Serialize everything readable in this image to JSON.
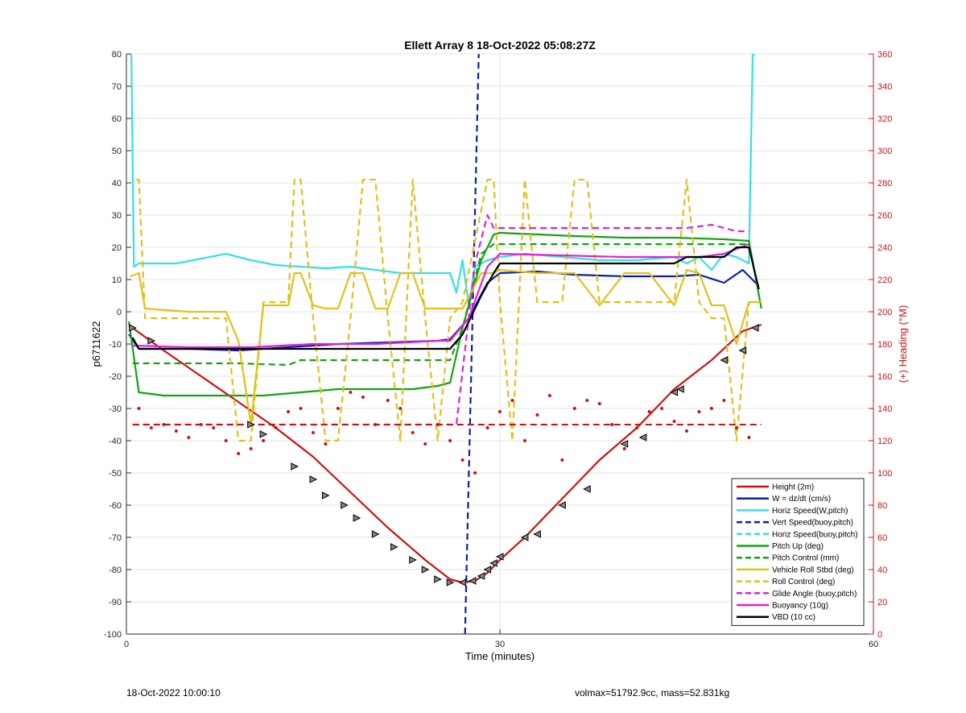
{
  "chart_data": {
    "type": "line",
    "title": "Ellett Array 8 18-Oct-2022 05:08:27Z",
    "xlabel": "Time (minutes)",
    "ylabel": "p6711622",
    "y2label": "(+) Heading (°M)",
    "xlim": [
      0,
      60
    ],
    "ylim": [
      -100,
      80
    ],
    "y2lim": [
      0,
      360
    ],
    "xticks": [
      0,
      30,
      60
    ],
    "yticks": [
      -100,
      -90,
      -80,
      -70,
      -60,
      -50,
      -40,
      -30,
      -20,
      -10,
      0,
      10,
      20,
      30,
      40,
      50,
      60,
      70,
      80
    ],
    "y2ticks": [
      0,
      20,
      40,
      60,
      80,
      100,
      120,
      140,
      160,
      180,
      200,
      220,
      240,
      260,
      280,
      300,
      320,
      340,
      360
    ],
    "grid": true,
    "legend_position": "bottom-right",
    "series": [
      {
        "name": "Height (2m)",
        "color": "#cc1111",
        "style": "solid",
        "x": [
          0.5,
          3,
          6,
          9,
          12,
          15,
          18,
          21,
          24,
          26,
          27,
          28,
          29,
          30,
          32,
          35,
          38,
          41,
          44,
          47,
          49.5,
          51
        ],
        "y": [
          -5,
          -12,
          -20,
          -28,
          -36,
          -45,
          -56,
          -67,
          -77,
          -83,
          -84,
          -83.5,
          -81,
          -77,
          -70,
          -58,
          -46,
          -36,
          -24,
          -15,
          -6,
          -4
        ]
      },
      {
        "name": "W = dz/dt (cm/s)",
        "color": "#0a1fa8",
        "style": "solid",
        "x": [
          0.2,
          1,
          5,
          9,
          13,
          17,
          21,
          25,
          26,
          27.5,
          29,
          30,
          33,
          36,
          40,
          44,
          46,
          48,
          49.5,
          50.8
        ],
        "y": [
          -7,
          -11.5,
          -11.5,
          -12,
          -11,
          -10,
          -9.5,
          -9,
          -8.5,
          -2,
          9,
          12,
          12.5,
          11.5,
          11,
          11,
          11.5,
          9,
          13,
          8
        ]
      },
      {
        "name": "Horiz Speed(W,pitch)",
        "color": "#33e0e8",
        "style": "solid",
        "x": [
          0.4,
          0.6,
          1,
          2,
          4,
          6,
          8,
          10,
          12,
          14,
          16,
          18,
          20,
          22,
          24,
          26,
          26.5,
          27,
          27.5,
          28,
          29,
          30,
          32,
          35,
          38,
          41,
          44,
          45,
          46,
          47,
          48,
          49,
          50,
          50.3,
          50.5
        ],
        "y": [
          80,
          14,
          15,
          15,
          15,
          16.5,
          18,
          16,
          14.5,
          14,
          13.5,
          14,
          13,
          12,
          12,
          12,
          6,
          16,
          2,
          14,
          16,
          17,
          18,
          17,
          16,
          16,
          17,
          15,
          17,
          13,
          18,
          17,
          15,
          80,
          80
        ]
      },
      {
        "name": "Vert Speed(buoy,pitch)",
        "color": "#0a1fa8",
        "style": "dashed",
        "x": [
          27.2,
          28.3
        ],
        "y": [
          -100,
          80
        ]
      },
      {
        "name": "Horiz Speed(buoy,pitch)",
        "color": "#33e0e8",
        "style": "dashed",
        "x": [],
        "y": []
      },
      {
        "name": "Pitch Up (deg)",
        "color": "#13a313",
        "style": "solid",
        "x": [
          0.2,
          1,
          3,
          6,
          9,
          11,
          14,
          17,
          20,
          23,
          25,
          26,
          27,
          28.5,
          29.5,
          30,
          33,
          36,
          40,
          44,
          48,
          50,
          51
        ],
        "y": [
          -3,
          -25,
          -26,
          -26,
          -26,
          -26,
          -25,
          -24,
          -24,
          -24,
          -23,
          -22,
          -5,
          16,
          24,
          24.5,
          24,
          23.5,
          23,
          23,
          22.5,
          22,
          1
        ]
      },
      {
        "name": "Pitch Control (mm)",
        "color": "#13a313",
        "style": "dashed",
        "x": [
          0.5,
          5,
          9,
          13,
          14,
          16,
          20,
          24,
          26,
          27,
          28.5,
          29.5,
          30,
          35,
          40,
          45,
          50
        ],
        "y": [
          -16,
          -16,
          -16,
          -16.5,
          -15,
          -15,
          -15,
          -15,
          -15,
          -5,
          18,
          21,
          21,
          21,
          21,
          21,
          21
        ]
      },
      {
        "name": "Vehicle Roll Stbd (deg)",
        "color": "#e0c11a",
        "style": "solid",
        "x": [
          0.3,
          1,
          1.5,
          5,
          8,
          9,
          10,
          11,
          12,
          13,
          13.5,
          14,
          15,
          16,
          17,
          18,
          19,
          20,
          21,
          22,
          23,
          24,
          25,
          26,
          27,
          28.5,
          29.5,
          30,
          33,
          36,
          38,
          40,
          42,
          44,
          45,
          46,
          47,
          48,
          49,
          50,
          51
        ],
        "y": [
          11,
          12,
          1,
          0,
          0,
          -9,
          -35,
          2,
          2,
          2,
          12,
          12,
          2,
          1,
          1,
          12,
          12,
          1,
          1,
          12,
          12,
          1,
          1,
          1,
          1,
          12,
          12,
          13,
          12,
          12,
          2,
          12,
          12,
          2,
          13,
          12,
          2,
          2,
          -10,
          3,
          3
        ]
      },
      {
        "name": "Roll Control (deg)",
        "color": "#e0c11a",
        "style": "dashed",
        "x": [
          0.8,
          1,
          1.5,
          2,
          5,
          8,
          9,
          10,
          11,
          13,
          13.5,
          14,
          15,
          16,
          17,
          18,
          19,
          20,
          21,
          22,
          23,
          24,
          25,
          26,
          27,
          29,
          29.5,
          30,
          31,
          32,
          33,
          35,
          36,
          37,
          38,
          40,
          42,
          44,
          45,
          46,
          47,
          48,
          49,
          50
        ],
        "y": [
          41,
          41,
          -2,
          -2,
          -2,
          -2,
          -40,
          -40,
          3,
          3,
          41,
          41,
          -2,
          -40,
          -40,
          -2,
          41,
          41,
          -2,
          -40,
          41,
          -2,
          -40,
          -2,
          3,
          41,
          41,
          3,
          -40,
          41,
          3,
          3,
          41,
          41,
          3,
          3,
          3,
          3,
          41,
          3,
          -2,
          -2,
          -40,
          3
        ]
      },
      {
        "name": "Glide Angle (buoy,pitch)",
        "color": "#dd22dd",
        "style": "dashed",
        "x": [
          0.5,
          5,
          10,
          15,
          20,
          25,
          26.5,
          28,
          29,
          29.5,
          30,
          35,
          40,
          45,
          47,
          49,
          50
        ],
        "y": [
          -35,
          -35,
          -35,
          -35,
          -35,
          -35,
          -35,
          15,
          30,
          26,
          26,
          26,
          26,
          26,
          27,
          25,
          25
        ]
      },
      {
        "name": "Buoyancy (10g)",
        "color": "#dd22dd",
        "style": "solid",
        "x": [
          0.5,
          5,
          10,
          15,
          20,
          25,
          26,
          27.5,
          29,
          30,
          35,
          40,
          44,
          46,
          48,
          50
        ],
        "y": [
          -10.5,
          -11,
          -11,
          -10,
          -10,
          -9,
          -9,
          -2,
          14,
          18,
          17.5,
          17,
          17,
          17,
          18,
          21
        ]
      },
      {
        "name": "VBD (10 cc)",
        "color": "#000000",
        "style": "solid",
        "x": [
          0.5,
          1,
          5,
          10,
          15,
          20,
          25,
          26,
          27,
          28.5,
          29.5,
          30,
          35,
          40,
          44,
          45,
          48,
          49,
          50,
          50.8
        ],
        "y": [
          -8,
          -11.5,
          -11.5,
          -11.5,
          -11.5,
          -11.5,
          -11.5,
          -11.5,
          -7,
          5,
          12,
          15,
          15,
          15,
          15,
          17,
          17,
          20,
          20,
          7
        ]
      }
    ],
    "heading_points_right_axis": {
      "name": "Heading",
      "color": "#cc1111",
      "style": "dotted-red-circles",
      "x": [
        1,
        2,
        3,
        4,
        5,
        6,
        7,
        8,
        9,
        10,
        11,
        12,
        13,
        14,
        15,
        16,
        17,
        18,
        19,
        20,
        21,
        22,
        23,
        24,
        25,
        26,
        27,
        28,
        29,
        30,
        31,
        32,
        33,
        34,
        35,
        36,
        37,
        38,
        39,
        40,
        41,
        42,
        43,
        44,
        45,
        46,
        47,
        48,
        49,
        50
      ],
      "y": [
        140,
        128,
        130,
        126,
        122,
        130,
        128,
        120,
        112,
        115,
        120,
        128,
        138,
        140,
        125,
        118,
        140,
        150,
        147,
        130,
        145,
        140,
        125,
        118,
        130,
        120,
        108,
        100,
        128,
        138,
        145,
        120,
        136,
        148,
        108,
        140,
        145,
        143,
        130,
        115,
        128,
        138,
        140,
        132,
        126,
        138,
        140,
        145,
        128,
        122
      ]
    },
    "triangle_markers": {
      "name": "Height markers",
      "x": [
        0.5,
        2,
        10,
        11,
        13.5,
        15,
        16,
        17.5,
        18.5,
        20,
        21.5,
        23,
        24,
        25,
        26,
        27,
        27.8,
        28.5,
        29,
        29.5,
        30,
        32,
        33,
        35,
        37,
        40,
        41.5,
        44,
        44.5,
        48,
        49.5,
        50.5
      ],
      "y": [
        -5,
        -9,
        -35,
        -38,
        -48,
        -52,
        -57,
        -60,
        -64,
        -69,
        -73,
        -77,
        -80,
        -83,
        -84,
        -84,
        -83.5,
        -82,
        -80,
        -78,
        -76,
        -70,
        -69,
        -60,
        -55,
        -41,
        -39,
        -25,
        -24,
        -15,
        -12,
        -5
      ]
    }
  },
  "footer": {
    "left": "18-Oct-2022 10:00:10",
    "right": "volmax=51792.9cc, mass=52.831kg"
  }
}
